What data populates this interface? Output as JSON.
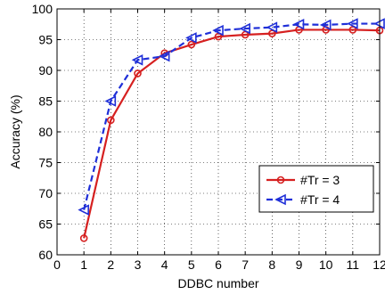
{
  "chart_data": {
    "type": "line",
    "title": "",
    "xlabel": "DDBC number",
    "ylabel": "Accuracy (%)",
    "xlim": [
      0,
      12
    ],
    "ylim": [
      60,
      100
    ],
    "xticks": [
      0,
      1,
      2,
      3,
      4,
      5,
      6,
      7,
      8,
      9,
      10,
      11,
      12
    ],
    "yticks": [
      60,
      65,
      70,
      75,
      80,
      85,
      90,
      95,
      100
    ],
    "grid": true,
    "legend_position": "bottom-right",
    "x": [
      1,
      2,
      3,
      4,
      5,
      6,
      7,
      8,
      9,
      10,
      11,
      12
    ],
    "series": [
      {
        "name": "#Tr = 3",
        "color": "#d62020",
        "line_style": "solid",
        "marker": "circle",
        "values": [
          62.7,
          81.9,
          89.5,
          92.8,
          94.2,
          95.5,
          95.8,
          96.0,
          96.6,
          96.6,
          96.6,
          96.5
        ]
      },
      {
        "name": "#Tr = 4",
        "color": "#1f2fd8",
        "line_style": "dashed",
        "marker": "triangle-left",
        "values": [
          67.3,
          85.0,
          91.7,
          92.3,
          95.3,
          96.5,
          96.8,
          97.0,
          97.5,
          97.4,
          97.6,
          97.6
        ]
      }
    ]
  }
}
